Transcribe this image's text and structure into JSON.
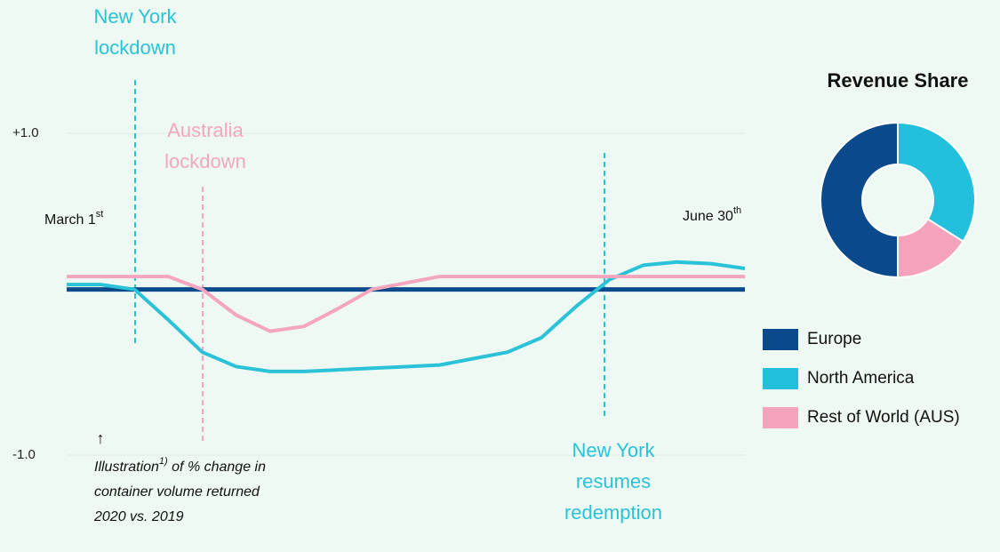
{
  "chart_data": [
    {
      "type": "line",
      "categories": [
        null,
        null,
        null,
        null,
        null,
        null,
        null,
        null,
        null,
        null,
        null,
        null,
        null,
        null,
        null,
        null,
        null,
        null,
        null,
        null,
        null
      ],
      "series": [
        {
          "color": "#0b4a8b",
          "values": [
            0.03,
            0.03,
            0.03,
            0.03,
            0.03,
            0.03,
            0.03,
            0.03,
            0.03,
            0.03,
            0.03,
            0.03,
            0.03,
            0.03,
            0.03,
            0.03,
            0.03,
            0.03,
            0.03,
            0.03,
            0.03
          ]
        },
        {
          "color": "#2bc2d8",
          "values": [
            0.06,
            0.06,
            0.03,
            -0.16,
            -0.36,
            -0.45,
            -0.48,
            -0.48,
            -0.47,
            -0.46,
            -0.45,
            -0.44,
            -0.4,
            -0.36,
            -0.27,
            -0.08,
            0.09,
            0.18,
            0.2,
            0.19,
            0.16
          ]
        },
        {
          "color": "#f4a6bf",
          "values": [
            0.11,
            0.11,
            0.11,
            0.11,
            0.03,
            -0.13,
            -0.23,
            -0.2,
            -0.09,
            0.03,
            0.07,
            0.11,
            0.11,
            0.11,
            0.11,
            0.11,
            0.11,
            0.11,
            0.11,
            0.11,
            0.11
          ]
        }
      ],
      "ylim": [
        -1,
        1
      ],
      "yticks": [
        {
          "value": 1,
          "label": "+1.0"
        },
        {
          "value": -1,
          "label": "-1.0"
        }
      ],
      "grid": true,
      "start_label": {
        "text": "March 1",
        "sup": "st"
      },
      "end_label": {
        "text": "June 30",
        "sup": "th"
      },
      "annotations": [
        {
          "lines": [
            "New York",
            "lockdown"
          ],
          "color": "#2bc2d8"
        },
        {
          "lines": [
            "Australia",
            "lockdown"
          ],
          "color": "#f4a6bf"
        },
        {
          "lines": [
            "New York",
            "resumes",
            "redemption"
          ],
          "color": "#2bc2d8"
        }
      ],
      "arrow": "↑",
      "note": {
        "text": "Illustration",
        "sup": "1)",
        "lines": [
          " of % change in",
          "container volume returned",
          "2020 vs. 2019"
        ]
      }
    },
    {
      "type": "pie",
      "title": "Revenue Share",
      "categories": [
        "Europe",
        "North America",
        "Rest of World (AUS)"
      ],
      "values": [
        50,
        34,
        16
      ],
      "colors": [
        "#0a4a8c",
        "#22c0dc",
        "#f5a3bb"
      ],
      "donut": true
    }
  ]
}
